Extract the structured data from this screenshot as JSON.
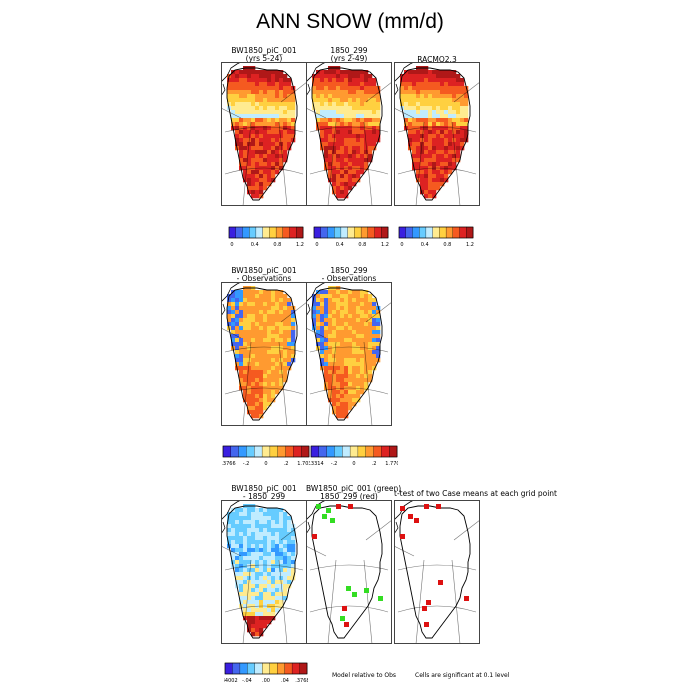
{
  "page_title": "ANN SNOW (mm/d)",
  "panels": {
    "r1c1": {
      "title_line1": "BW1850_piC_001",
      "title_line2": "(yrs 5-24)"
    },
    "r1c2": {
      "title_line1": "1850_299",
      "title_line2": "(yrs 2-49)"
    },
    "r1c3": {
      "title_line1": "RACMO2.3",
      "title_line2": ""
    },
    "r2c1": {
      "title_line1": "BW1850_piC_001",
      "title_line2": "- Observations"
    },
    "r2c2": {
      "title_line1": "1850_299",
      "title_line2": "- Observations"
    },
    "r3c1": {
      "title_line1": "BW1850_piC_001",
      "title_line2": "- 1850_299"
    },
    "r3c2": {
      "title_line1": "BW1850_piC_001 (green)",
      "title_line2": "1850_299 (red)"
    },
    "r3c3": {
      "title_line1": "t-test of two Case means at each grid point",
      "title_line2": ""
    }
  },
  "notes": {
    "model_relative": "Model relative to Obs",
    "significance": "Cells are significant at 0.1 level"
  },
  "colors": {
    "blue_dark": "#3a1fe0",
    "blue": "#4466ee",
    "blue_mid": "#3399ff",
    "blue_light": "#66ccff",
    "blue_pale": "#c0ecff",
    "yellow_pale": "#ffeb90",
    "yellow": "#ffd040",
    "orange": "#ff9a30",
    "orange_red": "#f55a20",
    "red": "#dd2222",
    "red_dark": "#b01818",
    "sig_green": "#33dd22",
    "sig_red": "#dd1111"
  },
  "chart_data": [
    {
      "panel": "r1c1",
      "type": "heatmap",
      "title": "BW1850_piC_001 (yrs 5-24)",
      "variable": "ANN SNOW",
      "units": "mm/d",
      "colorbar": {
        "ticks": [
          "0",
          "0.4",
          "0.8",
          "1.2"
        ],
        "levels": [
          0,
          0.2,
          0.4,
          0.6,
          0.8,
          1.0,
          1.2,
          1.4
        ]
      }
    },
    {
      "panel": "r1c2",
      "type": "heatmap",
      "title": "1850_299 (yrs 2-49)",
      "variable": "ANN SNOW",
      "units": "mm/d",
      "colorbar": {
        "ticks": [
          "0",
          "0.4",
          "0.8",
          "1.2"
        ],
        "levels": [
          0,
          0.2,
          0.4,
          0.6,
          0.8,
          1.0,
          1.2,
          1.4
        ]
      }
    },
    {
      "panel": "r1c3",
      "type": "heatmap",
      "title": "RACMO2.3",
      "variable": "ANN SNOW",
      "units": "mm/d",
      "colorbar": {
        "ticks": [
          "0",
          "0.4",
          "0.8",
          "1.2"
        ],
        "levels": [
          0,
          0.2,
          0.4,
          0.6,
          0.8,
          1.0,
          1.2,
          1.4
        ]
      }
    },
    {
      "panel": "r2c1",
      "type": "heatmap",
      "title": "BW1850_piC_001 - Observations",
      "colorbar": {
        "ticks": [
          "-7.3766",
          "-.2",
          "0",
          ".2",
          "1.7037"
        ],
        "min": -7.3766,
        "max": 1.7037
      }
    },
    {
      "panel": "r2c2",
      "type": "heatmap",
      "title": "1850_299 - Observations",
      "colorbar": {
        "ticks": [
          "-7.3314",
          "-.2",
          "0",
          ".2",
          "1.7705"
        ],
        "min": -7.3314,
        "max": 1.7705
      }
    },
    {
      "panel": "r3c1",
      "type": "heatmap",
      "title": "BW1850_piC_001 - 1850_299",
      "colorbar": {
        "ticks": [
          "-.34002",
          "-.04",
          ".00",
          ".04",
          ".37682"
        ],
        "min": -0.34002,
        "max": 0.37682
      }
    },
    {
      "panel": "r3c2",
      "type": "heatmap",
      "title": "BW1850_piC_001 (green) 1850_299 (red)",
      "legend": [
        "green",
        "red"
      ]
    },
    {
      "panel": "r3c3",
      "type": "heatmap",
      "title": "t-test of two Case means at each grid point"
    }
  ]
}
